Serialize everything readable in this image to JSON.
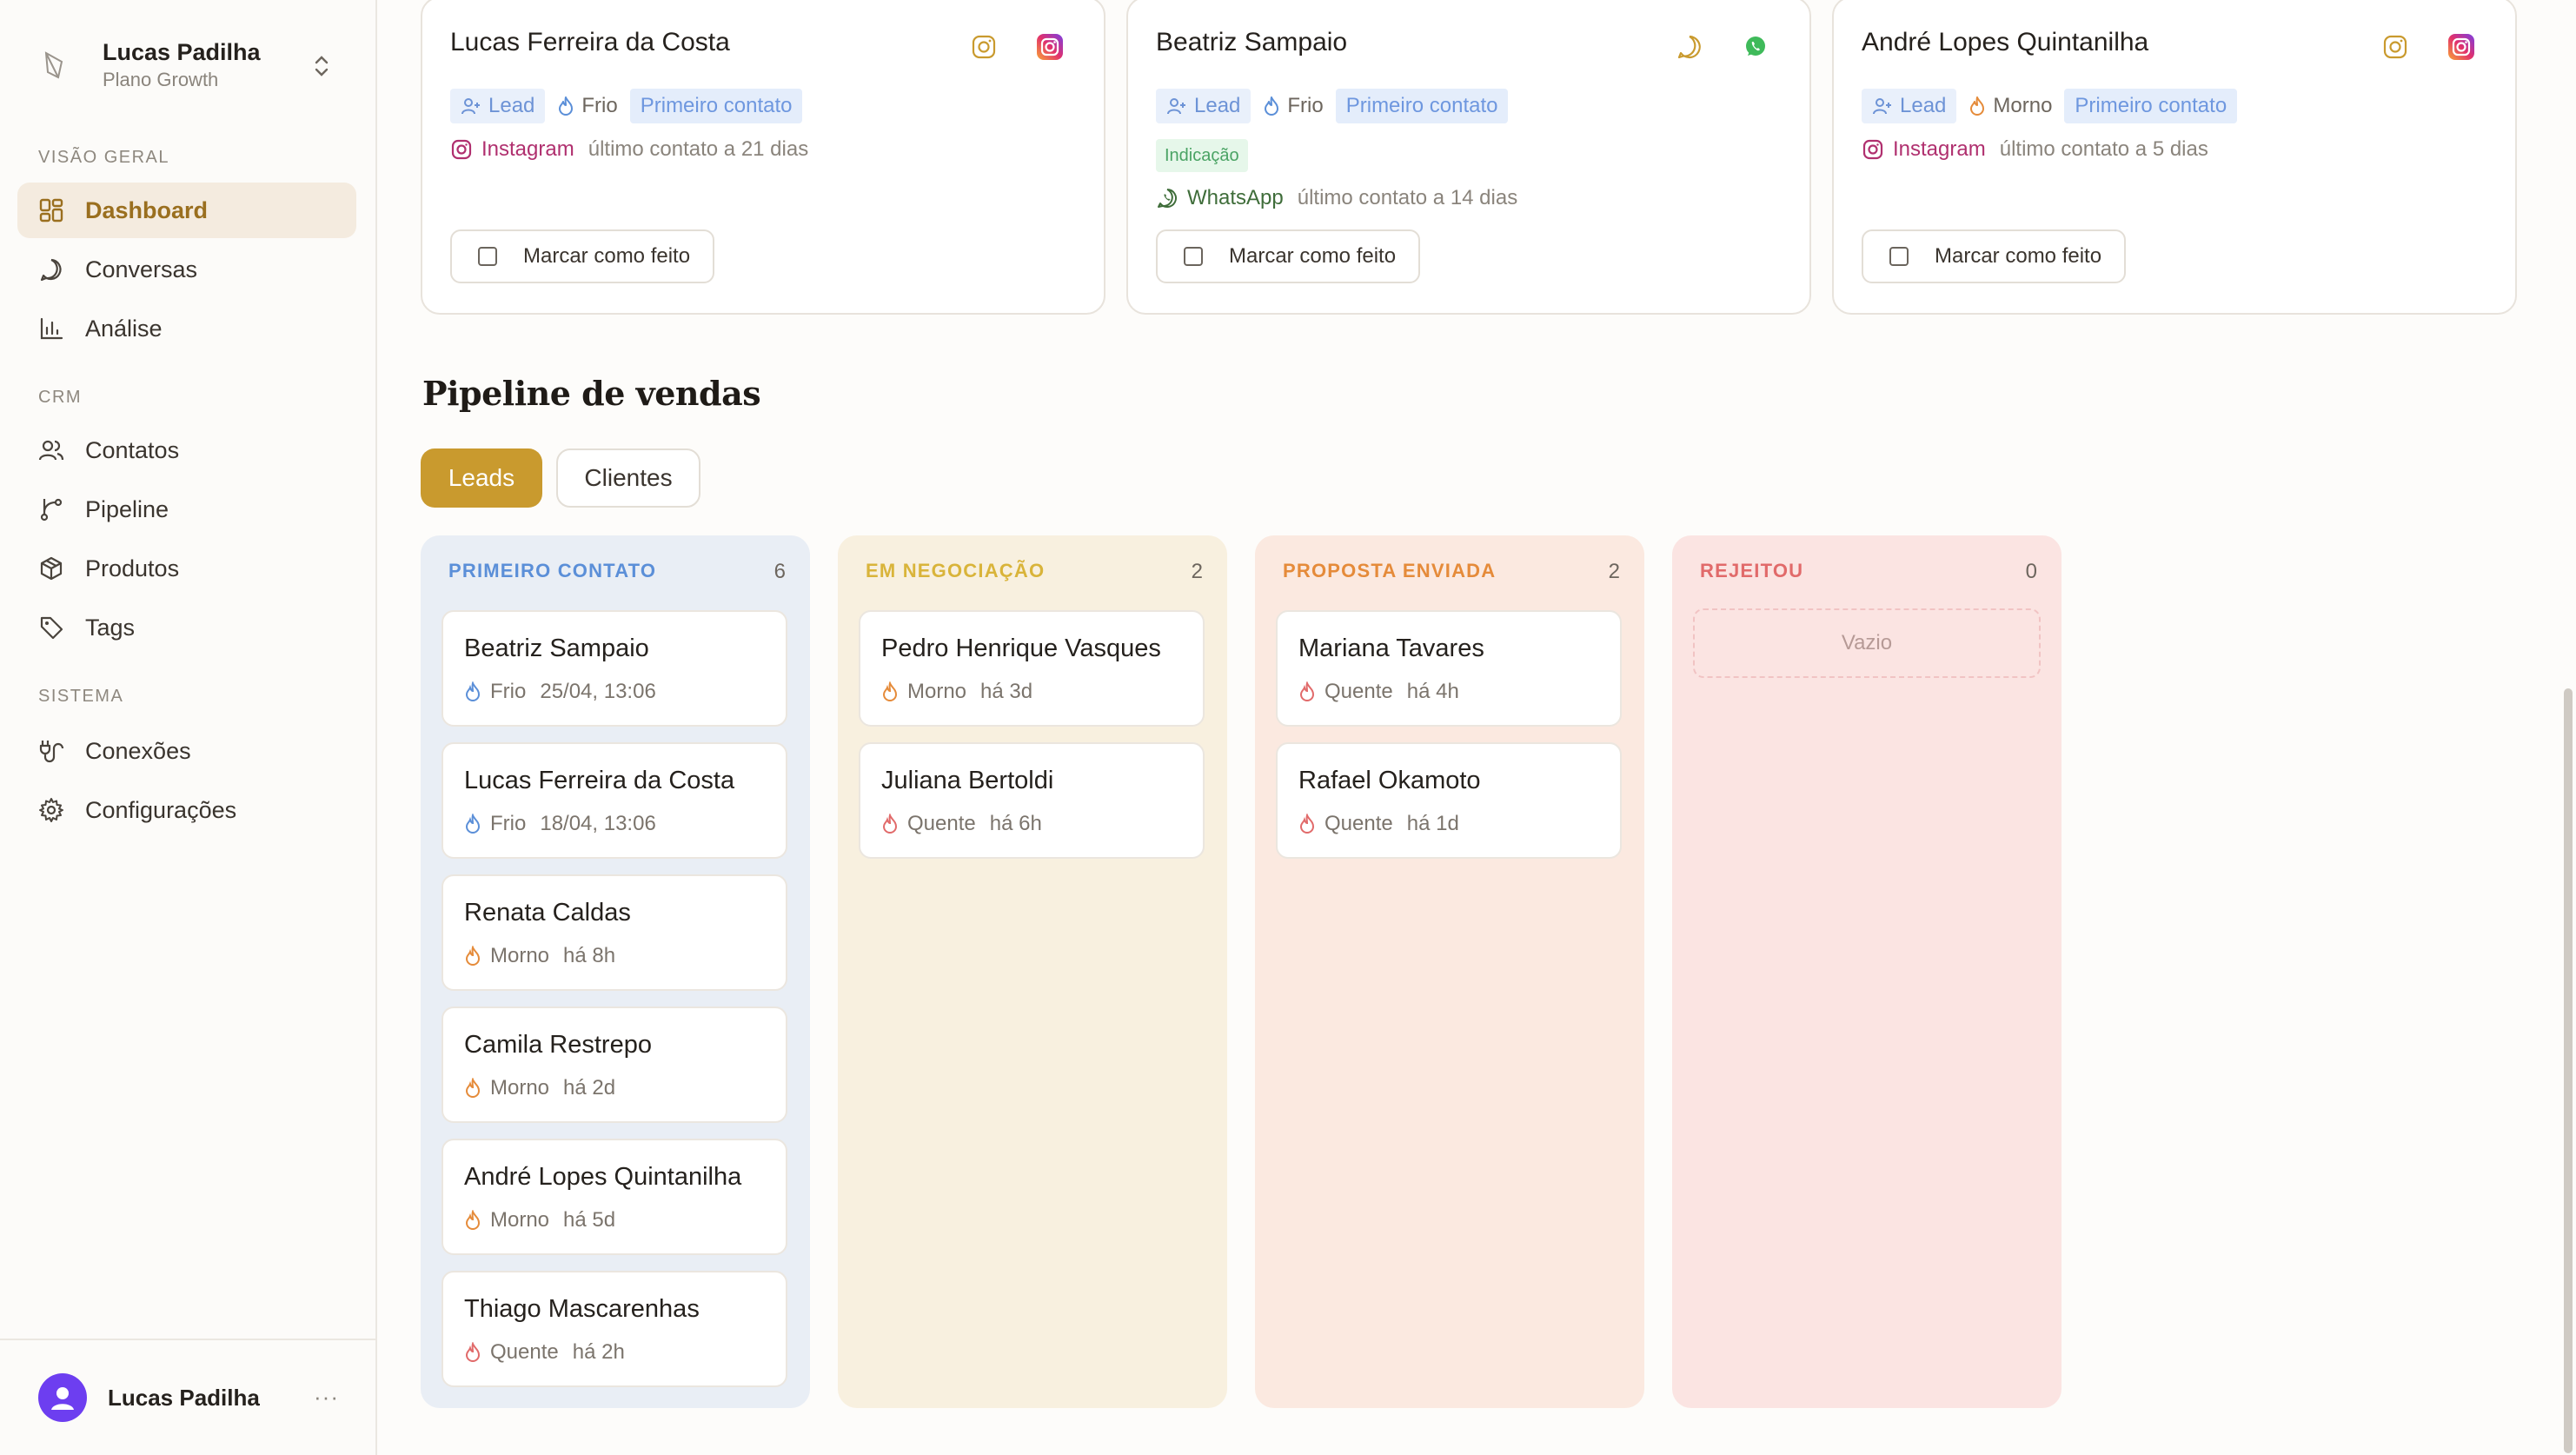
{
  "workspace": {
    "name": "Lucas Padilha",
    "plan": "Plano Growth"
  },
  "nav": {
    "groups": [
      {
        "label": "VISÃO GERAL"
      },
      {
        "label": "CRM"
      },
      {
        "label": "SISTEMA"
      }
    ],
    "items": [
      {
        "label": "Dashboard",
        "icon": "dashboard-icon",
        "active": true
      },
      {
        "label": "Conversas",
        "icon": "chat-icon"
      },
      {
        "label": "Análise",
        "icon": "bar-chart-icon"
      },
      {
        "label": "Contatos",
        "icon": "users-icon"
      },
      {
        "label": "Pipeline",
        "icon": "pipeline-icon"
      },
      {
        "label": "Produtos",
        "icon": "box-icon"
      },
      {
        "label": "Tags",
        "icon": "tag-icon"
      },
      {
        "label": "Conexões",
        "icon": "plug-icon"
      },
      {
        "label": "Configurações",
        "icon": "gear-icon"
      }
    ]
  },
  "user": {
    "name": "Lucas Padilha",
    "more": "···"
  },
  "tasks": [
    {
      "name": "Lucas Ferreira da Costa",
      "type": "Lead",
      "temperature": "Frio",
      "stage": "Primeiro contato",
      "channel": "Instagram",
      "last_contact": "último contato a 21 dias",
      "action": "Marcar como feito"
    },
    {
      "name": "Beatriz Sampaio",
      "type": "Lead",
      "temperature": "Frio",
      "stage": "Primeiro contato",
      "extra_tag": "Indicação",
      "channel": "WhatsApp",
      "last_contact": "último contato a 14 dias",
      "action": "Marcar como feito"
    },
    {
      "name": "André Lopes Quintanilha",
      "type": "Lead",
      "temperature": "Morno",
      "stage": "Primeiro contato",
      "channel": "Instagram",
      "last_contact": "último contato a 5 dias",
      "action": "Marcar como feito"
    }
  ],
  "pipeline": {
    "title": "Pipeline de vendas",
    "tabs": [
      {
        "label": "Leads",
        "active": true
      },
      {
        "label": "Clientes"
      }
    ],
    "columns": [
      {
        "title": "PRIMEIRO CONTATO",
        "count": "6",
        "color": "#5b8fd8",
        "bg": "#e9eef5",
        "deals": [
          {
            "name": "Beatriz Sampaio",
            "temp": "Frio",
            "time": "25/04, 13:06"
          },
          {
            "name": "Lucas Ferreira da Costa",
            "temp": "Frio",
            "time": "18/04, 13:06"
          },
          {
            "name": "Renata Caldas",
            "temp": "Morno",
            "time": "há 8h"
          },
          {
            "name": "Camila Restrepo",
            "temp": "Morno",
            "time": "há 2d"
          },
          {
            "name": "André Lopes Quintanilha",
            "temp": "Morno",
            "time": "há 5d"
          },
          {
            "name": "Thiago Mascarenhas",
            "temp": "Quente",
            "time": "há 2h"
          }
        ]
      },
      {
        "title": "EM NEGOCIAÇÃO",
        "count": "2",
        "color": "#d9b43a",
        "bg": "#f8f0df",
        "deals": [
          {
            "name": "Pedro Henrique Vasques",
            "temp": "Morno",
            "time": "há 3d"
          },
          {
            "name": "Juliana Bertoldi",
            "temp": "Quente",
            "time": "há 6h"
          }
        ]
      },
      {
        "title": "PROPOSTA ENVIADA",
        "count": "2",
        "color": "#e58b3a",
        "bg": "#fbe9e0",
        "deals": [
          {
            "name": "Mariana Tavares",
            "temp": "Quente",
            "time": "há 4h"
          },
          {
            "name": "Rafael Okamoto",
            "temp": "Quente",
            "time": "há 1d"
          }
        ]
      },
      {
        "title": "REJEITOU",
        "count": "0",
        "color": "#e16a6a",
        "bg": "#fbe4e2",
        "empty_text": "Vazio",
        "deals": []
      }
    ]
  },
  "colors": {
    "accent": "#c99a2e",
    "frio": "#5b8fd8",
    "morno": "#e58b3a",
    "quente": "#e16a6a",
    "instagram": "#b0306f",
    "whatsapp": "#3f6d3a"
  }
}
